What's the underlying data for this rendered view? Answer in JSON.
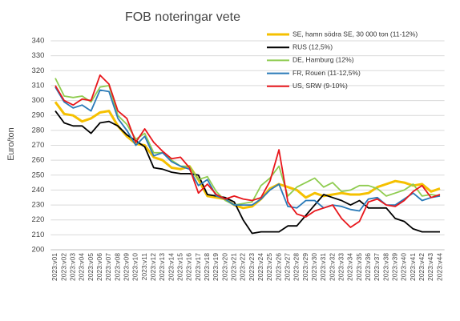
{
  "chart_data": {
    "type": "line",
    "title": "FOB noteringar vete",
    "y_label": "Euro/ton",
    "categories": [
      "2023:v01",
      "2023:v02",
      "2023:v03",
      "2023:v04",
      "2023:v05",
      "2023:v06",
      "2023:v07",
      "2023:v08",
      "2023:v09",
      "2023:v10",
      "2023:v11",
      "2023:v12",
      "2023:v13",
      "2023:v14",
      "2023:v15",
      "2023:v16",
      "2023:v17",
      "2023:v18",
      "2023:v19",
      "2023:v20",
      "2023:v21",
      "2023:v22",
      "2023:v23",
      "2023:v24",
      "2023:v25",
      "2023:v26",
      "2023:v27",
      "2023:v28",
      "2023:v29",
      "2023:v30",
      "2023:v31",
      "2023:v32",
      "2023:v33",
      "2023:v34",
      "2023:v35",
      "2023:v36",
      "2023:v37",
      "2023:v38",
      "2023:v39",
      "2023:v40",
      "2023:v41",
      "2023:v42",
      "2023:v43",
      "2023:v44"
    ],
    "series": [
      {
        "name": "SE, hamn södra SE, 30 000 ton (11-12%)",
        "color": "#f5c000",
        "values": [
          299,
          291,
          290,
          286,
          288,
          292,
          293,
          283,
          276,
          271,
          270,
          262,
          260,
          255,
          254,
          256,
          247,
          236,
          235,
          234,
          230,
          228,
          229,
          234,
          241,
          244,
          242,
          240,
          235,
          238,
          236,
          237,
          238,
          237,
          237,
          238,
          242,
          244,
          246,
          245,
          243,
          244,
          239,
          241
        ]
      },
      {
        "name": "RUS (12,5%)",
        "color": "#000000",
        "values": [
          293,
          285,
          283,
          283,
          278,
          285,
          286,
          283,
          277,
          273,
          269,
          255,
          254,
          252,
          251,
          251,
          250,
          237,
          236,
          235,
          232,
          220,
          211,
          212,
          212,
          212,
          216,
          216,
          223,
          230,
          237,
          235,
          233,
          230,
          233,
          228,
          228,
          228,
          221,
          219,
          214,
          212,
          212,
          212
        ]
      },
      {
        "name": "DE, Hamburg (12%)",
        "color": "#8fcc50",
        "values": [
          315,
          303,
          302,
          303,
          299,
          309,
          310,
          290,
          284,
          274,
          278,
          265,
          265,
          260,
          256,
          256,
          247,
          249,
          239,
          233,
          230,
          231,
          232,
          243,
          248,
          256,
          236,
          242,
          245,
          248,
          242,
          245,
          239,
          240,
          243,
          243,
          241,
          236,
          238,
          240,
          244,
          236,
          237,
          236
        ]
      },
      {
        "name": "FR, Rouen (11-12,5%)",
        "color": "#2a7ab8",
        "values": [
          309,
          299,
          295,
          297,
          293,
          307,
          306,
          288,
          280,
          270,
          276,
          263,
          265,
          259,
          256,
          254,
          243,
          247,
          236,
          234,
          230,
          230,
          230,
          234,
          240,
          244,
          229,
          228,
          233,
          233,
          228,
          230,
          229,
          227,
          226,
          234,
          235,
          230,
          230,
          234,
          238,
          233,
          235,
          236
        ]
      },
      {
        "name": "US, SRW (9-10%)",
        "color": "#e8161b",
        "values": [
          310,
          300,
          297,
          301,
          300,
          317,
          311,
          293,
          288,
          272,
          281,
          272,
          266,
          261,
          262,
          255,
          238,
          244,
          237,
          234,
          236,
          234,
          233,
          235,
          246,
          267,
          232,
          224,
          222,
          226,
          228,
          230,
          221,
          215,
          219,
          232,
          234,
          230,
          229,
          233,
          239,
          243,
          235,
          237
        ]
      }
    ],
    "ylim": [
      200,
      340
    ],
    "yticks": [
      200,
      210,
      220,
      230,
      240,
      250,
      260,
      270,
      280,
      290,
      300,
      310,
      320,
      330,
      340
    ],
    "grid": true,
    "legend": "upper-right"
  }
}
